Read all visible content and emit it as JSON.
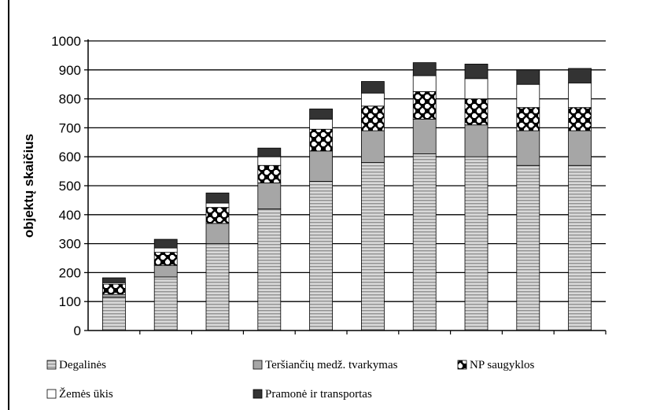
{
  "chart_data": {
    "type": "bar",
    "stacked": true,
    "categories": [
      "",
      "",
      "",
      "",
      "",
      "",
      "",
      "",
      "",
      ""
    ],
    "series": [
      {
        "name": "Degalinės",
        "values": [
          115,
          185,
          300,
          420,
          515,
          580,
          610,
          600,
          570,
          570
        ],
        "pattern": "horizontal-stripes"
      },
      {
        "name": "Teršiančių medž. tvarkymas",
        "values": [
          10,
          40,
          70,
          90,
          105,
          110,
          120,
          110,
          120,
          120
        ],
        "pattern": "gray"
      },
      {
        "name": "NP saugyklos",
        "values": [
          35,
          45,
          55,
          60,
          75,
          85,
          95,
          90,
          80,
          80
        ],
        "pattern": "checker"
      },
      {
        "name": "Žemės ūkis",
        "values": [
          5,
          15,
          15,
          30,
          35,
          45,
          55,
          70,
          80,
          85
        ],
        "pattern": "white"
      },
      {
        "name": "Pramonė ir transportas",
        "values": [
          17,
          30,
          35,
          30,
          35,
          40,
          45,
          50,
          50,
          50
        ],
        "pattern": "dark"
      }
    ],
    "ylabel": "objektų skaičius",
    "xlabel": "",
    "ylim": [
      0,
      1000
    ],
    "yticks": [
      "0",
      "100",
      "200",
      "300",
      "400",
      "500",
      "600",
      "700",
      "800",
      "900",
      "1000"
    ],
    "grid": true,
    "legend_position": "bottom",
    "colors": {
      "stripe_fill": "#d9d9d9",
      "stripe_line": "#909090",
      "gray": "#a6a6a6",
      "dark": "#333333",
      "checker_dark": "#000000",
      "checker_light": "#ffffff",
      "white": "#ffffff",
      "grid": "#000000"
    }
  }
}
